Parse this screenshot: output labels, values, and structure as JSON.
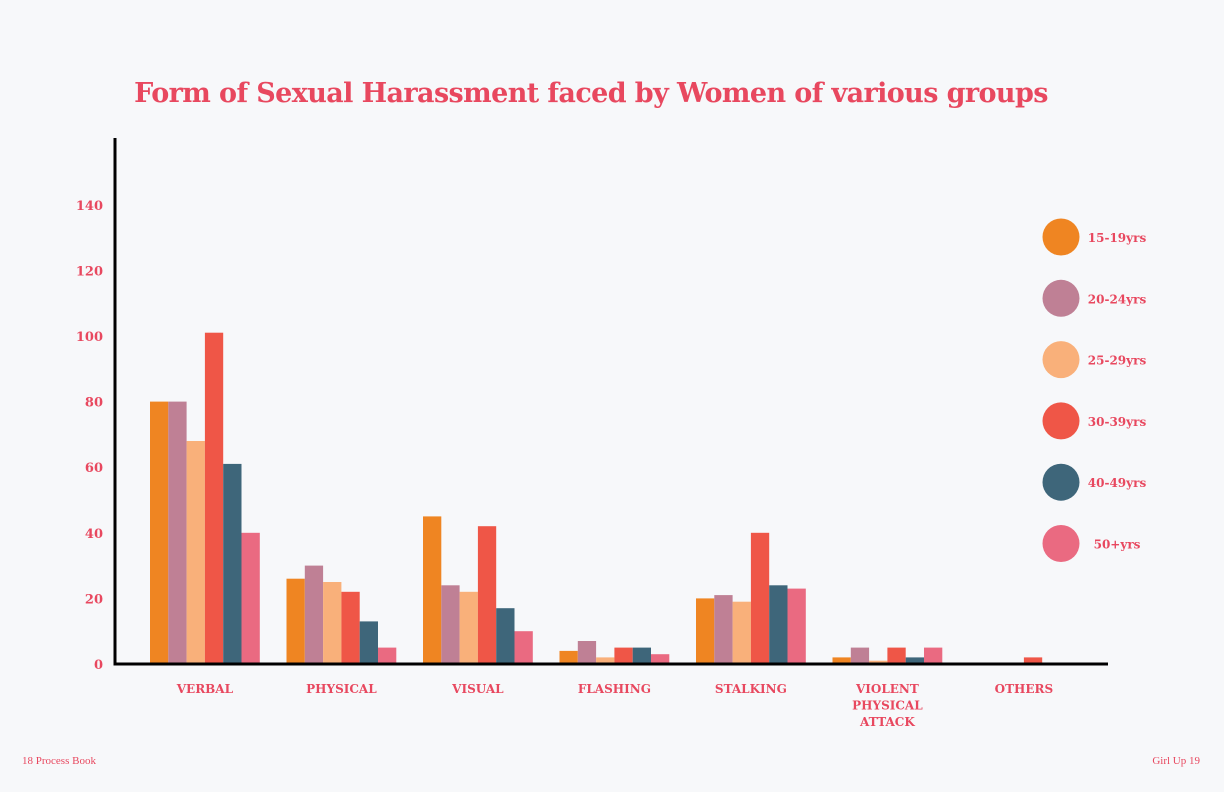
{
  "colors": {
    "accent": "#e8485f",
    "axis": "#000000",
    "background": "#f7f8fa"
  },
  "footer": {
    "left": "18 Process Book",
    "right": "Girl Up  19"
  },
  "chart_data": {
    "type": "bar",
    "title": "Form of Sexual Harassment faced by Women of various groups",
    "xlabel": "",
    "ylabel": "",
    "ylim": [
      0,
      160
    ],
    "yticks": [
      0,
      20,
      40,
      60,
      80,
      100,
      120,
      140
    ],
    "grid": false,
    "legend_position": "right",
    "categories": [
      [
        "VERBAL"
      ],
      [
        "PHYSICAL"
      ],
      [
        "VISUAL"
      ],
      [
        "FLASHING"
      ],
      [
        "STALKING"
      ],
      [
        "VIOLENT",
        "PHYSICAL",
        "ATTACK"
      ],
      [
        "OTHERS"
      ]
    ],
    "series": [
      {
        "name": "15-19yrs",
        "color": "#ef8522",
        "values": [
          80,
          26,
          45,
          4,
          20,
          2,
          0
        ]
      },
      {
        "name": "20-24yrs",
        "color": "#bf8095",
        "values": [
          80,
          30,
          24,
          7,
          21,
          5,
          0
        ]
      },
      {
        "name": "25-29yrs",
        "color": "#f9b07a",
        "values": [
          68,
          25,
          22,
          2,
          19,
          1,
          0
        ]
      },
      {
        "name": "30-39yrs",
        "color": "#ef5647",
        "values": [
          101,
          22,
          42,
          5,
          40,
          5,
          2
        ]
      },
      {
        "name": "40-49yrs",
        "color": "#3e667a",
        "values": [
          61,
          13,
          17,
          5,
          24,
          2,
          0
        ]
      },
      {
        "name": "50+yrs",
        "color": "#ea6a81",
        "values": [
          40,
          5,
          10,
          3,
          23,
          5,
          0
        ]
      }
    ]
  }
}
